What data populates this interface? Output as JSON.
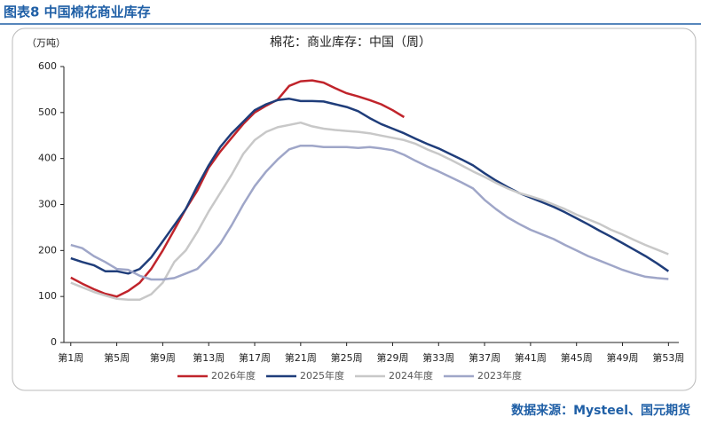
{
  "header": "图表8  中国棉花商业库存",
  "source": "数据来源：Mysteel、国元期货",
  "chart_data": {
    "type": "line",
    "title": "棉花：商业库存：中国（周）",
    "y_label": "（万吨）",
    "x": [
      1,
      2,
      3,
      4,
      5,
      6,
      7,
      8,
      9,
      10,
      11,
      12,
      13,
      14,
      15,
      16,
      17,
      18,
      19,
      20,
      21,
      22,
      23,
      24,
      25,
      26,
      27,
      28,
      29,
      30,
      31,
      32,
      33,
      34,
      35,
      36,
      37,
      38,
      39,
      40,
      41,
      42,
      43,
      44,
      45,
      46,
      47,
      48,
      49,
      50,
      51,
      52,
      53
    ],
    "xlim": [
      0.4,
      53.9
    ],
    "xticks": [
      {
        "value": 1,
        "label": "第1周"
      },
      {
        "value": 5,
        "label": "第5周"
      },
      {
        "value": 9,
        "label": "第9周"
      },
      {
        "value": 13,
        "label": "第13周"
      },
      {
        "value": 17,
        "label": "第17周"
      },
      {
        "value": 21,
        "label": "第21周"
      },
      {
        "value": 25,
        "label": "第25周"
      },
      {
        "value": 29,
        "label": "第29周"
      },
      {
        "value": 33,
        "label": "第33周"
      },
      {
        "value": 37,
        "label": "第37周"
      },
      {
        "value": 41,
        "label": "第41周"
      },
      {
        "value": 45,
        "label": "第45周"
      },
      {
        "value": 49,
        "label": "第49周"
      },
      {
        "value": 53,
        "label": "第53周"
      }
    ],
    "ylim": [
      0,
      600
    ],
    "yticks": [
      0,
      100,
      200,
      300,
      400,
      500,
      600
    ],
    "series": [
      {
        "name": "2026年度",
        "color": "#c0242b",
        "values": [
          141,
          128,
          116,
          106,
          100,
          112,
          130,
          160,
          200,
          245,
          290,
          330,
          380,
          415,
          445,
          475,
          500,
          515,
          528,
          558,
          568,
          570,
          565,
          553,
          542,
          535,
          527,
          518,
          505,
          490,
          null,
          null,
          null,
          null,
          null,
          null,
          null,
          null,
          null,
          null,
          null,
          null,
          null,
          null,
          null,
          null,
          null,
          null,
          null,
          null,
          null,
          null,
          null
        ]
      },
      {
        "name": "2025年度",
        "color": "#1f3d7a",
        "values": [
          183,
          175,
          168,
          155,
          155,
          150,
          160,
          185,
          220,
          255,
          290,
          340,
          385,
          425,
          455,
          480,
          505,
          518,
          527,
          530,
          525,
          525,
          524,
          518,
          512,
          503,
          488,
          475,
          465,
          455,
          443,
          432,
          422,
          410,
          398,
          385,
          368,
          352,
          338,
          325,
          315,
          305,
          295,
          283,
          270,
          257,
          243,
          230,
          216,
          202,
          188,
          172,
          155
        ]
      },
      {
        "name": "2024年度",
        "color": "#c8c8c8",
        "values": [
          130,
          120,
          110,
          102,
          95,
          93,
          93,
          105,
          130,
          175,
          200,
          240,
          285,
          325,
          365,
          410,
          440,
          458,
          468,
          473,
          478,
          470,
          465,
          462,
          460,
          458,
          455,
          450,
          445,
          440,
          432,
          420,
          410,
          398,
          385,
          372,
          360,
          347,
          335,
          325,
          318,
          310,
          300,
          290,
          278,
          268,
          258,
          245,
          235,
          223,
          212,
          202,
          192
        ]
      },
      {
        "name": "2023年度",
        "color": "#9fa6c8",
        "values": [
          212,
          205,
          188,
          175,
          160,
          158,
          145,
          137,
          137,
          140,
          150,
          160,
          185,
          215,
          255,
          300,
          340,
          372,
          398,
          420,
          428,
          428,
          425,
          425,
          425,
          423,
          425,
          422,
          418,
          408,
          395,
          383,
          372,
          360,
          348,
          335,
          310,
          290,
          272,
          258,
          245,
          235,
          225,
          212,
          200,
          188,
          178,
          168,
          158,
          150,
          143,
          140,
          138
        ]
      }
    ]
  }
}
